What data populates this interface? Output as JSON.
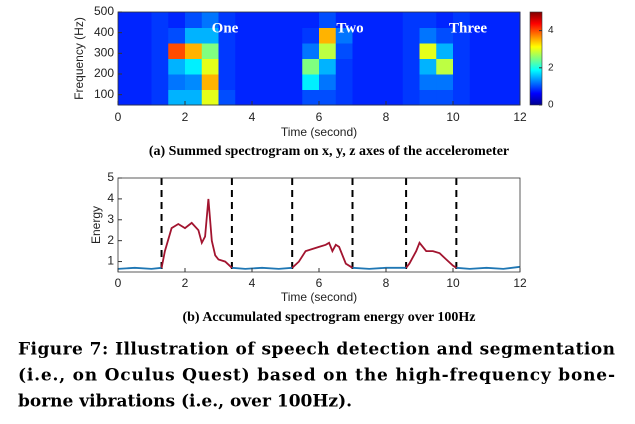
{
  "chart_data": [
    {
      "type": "heatmap",
      "subtitle": "(a) Summed spectrogram on x, y, z axes of the accelerometer",
      "xlabel": "Time (second)",
      "ylabel": "Frequency (Hz)",
      "annotations": [
        "One",
        "Two",
        "Three"
      ],
      "colormap": "jet",
      "x_bins": [
        0,
        0.5,
        1,
        1.5,
        2,
        2.5,
        3,
        3.5,
        4,
        4.5,
        5,
        5.5,
        6,
        6.5,
        7,
        7.5,
        8,
        8.5,
        9,
        9.5,
        10,
        10.5,
        11,
        11.5,
        12
      ],
      "y_bins": [
        50,
        125,
        200,
        275,
        350,
        425,
        500
      ],
      "z": [
        [
          0.8,
          0.8,
          0.9,
          1.5,
          1.5,
          3.0,
          1.0,
          0.8,
          0.8,
          0.8,
          0.8,
          1.0,
          1.0,
          0.9,
          0.8,
          0.8,
          0.8,
          0.9,
          1.0,
          1.0,
          0.9,
          0.8,
          0.8,
          0.8
        ],
        [
          0.8,
          0.8,
          0.9,
          1.2,
          1.3,
          3.5,
          0.9,
          0.8,
          0.8,
          0.8,
          0.8,
          1.8,
          1.2,
          0.9,
          0.8,
          0.8,
          0.8,
          0.9,
          1.2,
          1.2,
          0.9,
          0.8,
          0.8,
          0.8
        ],
        [
          0.8,
          0.8,
          0.9,
          1.5,
          1.8,
          3.0,
          0.9,
          0.8,
          0.8,
          0.8,
          0.8,
          2.5,
          1.5,
          0.9,
          0.8,
          0.8,
          0.8,
          0.9,
          1.5,
          2.8,
          0.9,
          0.8,
          0.8,
          0.8
        ],
        [
          0.8,
          0.8,
          0.9,
          4.0,
          3.5,
          2.5,
          0.9,
          0.8,
          0.8,
          0.8,
          0.8,
          1.2,
          2.8,
          1.0,
          0.8,
          0.8,
          0.8,
          0.9,
          3.0,
          1.5,
          0.9,
          0.8,
          0.8,
          0.8
        ],
        [
          0.8,
          0.8,
          0.9,
          1.0,
          1.5,
          1.5,
          0.9,
          0.8,
          0.8,
          0.8,
          0.8,
          0.9,
          3.5,
          1.2,
          0.8,
          0.8,
          0.8,
          0.9,
          1.2,
          1.0,
          0.9,
          0.8,
          0.8,
          0.8
        ],
        [
          0.8,
          0.8,
          0.9,
          0.8,
          1.0,
          1.2,
          0.9,
          0.8,
          0.8,
          0.8,
          0.8,
          0.8,
          1.0,
          0.8,
          0.8,
          0.8,
          0.8,
          0.9,
          0.9,
          0.8,
          0.9,
          0.8,
          0.8,
          0.8
        ]
      ],
      "xlim": [
        0,
        12
      ],
      "xticks": [
        0,
        2,
        4,
        6,
        8,
        10,
        12
      ],
      "ylim": [
        50,
        500
      ],
      "yticks": [
        100,
        200,
        300,
        400,
        500
      ],
      "clim": [
        0,
        5
      ],
      "cticks": [
        0,
        2,
        4
      ]
    },
    {
      "type": "line",
      "subtitle": "(b) Accumulated spectrogram energy over 100Hz",
      "xlabel": "Time (second)",
      "ylabel": "Energy",
      "x": [
        0,
        0.5,
        1,
        1.3,
        1.4,
        1.6,
        1.8,
        2,
        2.2,
        2.4,
        2.5,
        2.6,
        2.7,
        2.8,
        2.9,
        3,
        3.2,
        3.4,
        3.8,
        4.3,
        4.8,
        5.2,
        5.4,
        5.6,
        5.8,
        6,
        6.2,
        6.3,
        6.4,
        6.5,
        6.6,
        6.8,
        7,
        7.5,
        8,
        8.6,
        8.7,
        8.9,
        9,
        9.2,
        9.4,
        9.6,
        9.8,
        10,
        10.1,
        10.5,
        11,
        11.5,
        12
      ],
      "series": [
        {
          "color": "#1f77b4",
          "values": [
            0.65,
            0.7,
            0.65,
            0.7,
            null,
            null,
            null,
            null,
            null,
            null,
            null,
            null,
            null,
            null,
            null,
            null,
            null,
            0.7,
            0.65,
            0.7,
            0.65,
            0.7,
            null,
            null,
            null,
            null,
            null,
            null,
            null,
            null,
            null,
            null,
            0.7,
            0.65,
            0.7,
            0.7,
            null,
            null,
            null,
            null,
            null,
            null,
            null,
            null,
            0.7,
            0.65,
            0.7,
            0.65,
            0.75
          ]
        },
        {
          "color": "#a2142f",
          "values": [
            null,
            null,
            null,
            0.7,
            1.5,
            2.6,
            2.8,
            2.6,
            2.85,
            2.5,
            1.9,
            2.2,
            4.0,
            2.0,
            1.3,
            1.1,
            1.0,
            0.7,
            null,
            null,
            null,
            0.7,
            1.0,
            1.5,
            1.6,
            1.7,
            1.8,
            1.9,
            1.5,
            1.8,
            1.7,
            0.9,
            0.7,
            null,
            null,
            0.7,
            0.9,
            1.5,
            1.9,
            1.5,
            1.5,
            1.4,
            1.1,
            0.8,
            0.7,
            null,
            null,
            null,
            null
          ]
        }
      ],
      "boundaries": [
        1.3,
        3.4,
        5.2,
        7.0,
        8.6,
        10.1
      ],
      "xlim": [
        0,
        12
      ],
      "xticks": [
        0,
        2,
        4,
        6,
        8,
        10,
        12
      ],
      "ylim": [
        0.5,
        5
      ],
      "yticks": [
        1,
        2,
        3,
        4,
        5
      ]
    }
  ],
  "caption": [
    "Figure 7: Illustration of speech detection and segmentation",
    "(i.e., on Oculus Quest) based on the high-frequency bone-",
    "borne vibrations (i.e., over 100Hz)."
  ]
}
